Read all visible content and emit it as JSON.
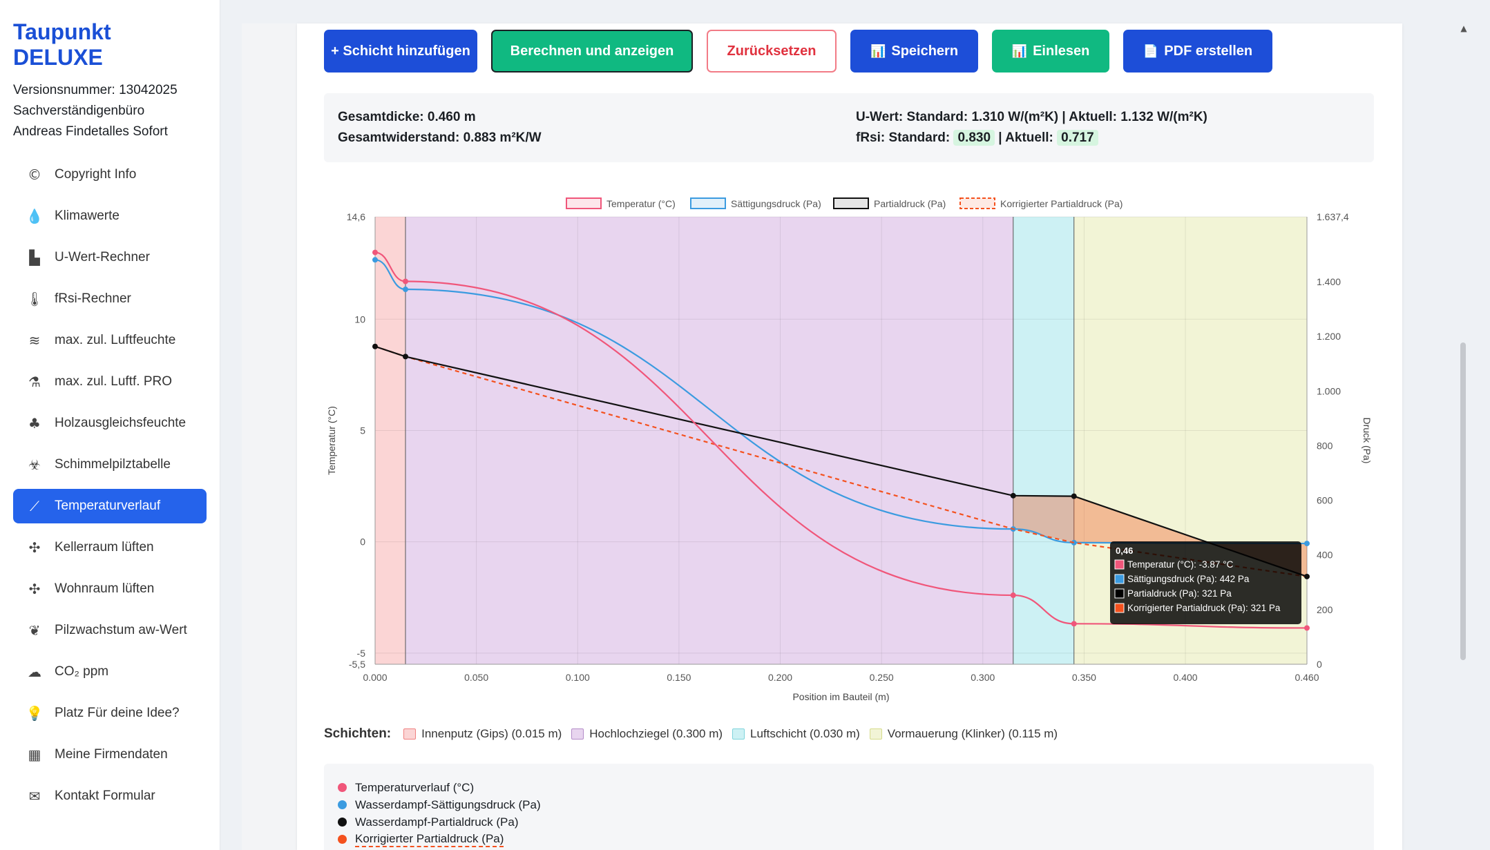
{
  "sidebar": {
    "title": "Taupunkt DELUXE",
    "version": "Versionsnummer: 13042025",
    "company_line1": "Sachverständigenbüro",
    "company_line2": "Andreas Findetalles Sofort",
    "items": [
      {
        "label": "Copyright Info",
        "icon": "©"
      },
      {
        "label": "Klimawerte",
        "icon": "💧"
      },
      {
        "label": "U-Wert-Rechner",
        "icon": "▙"
      },
      {
        "label": "fRsi-Rechner",
        "icon": "🌡"
      },
      {
        "label": "max. zul. Luftfeuchte",
        "icon": "≋"
      },
      {
        "label": "max. zul. Luftf. PRO",
        "icon": "⚗"
      },
      {
        "label": "Holzausgleichsfeuchte",
        "icon": "♣"
      },
      {
        "label": "Schimmelpilztabelle",
        "icon": "☣"
      },
      {
        "label": "Temperaturverlauf",
        "icon": "⟋"
      },
      {
        "label": "Kellerraum lüften",
        "icon": "✣"
      },
      {
        "label": "Wohnraum lüften",
        "icon": "✣"
      },
      {
        "label": "Pilzwachstum aw-Wert",
        "icon": "❦"
      },
      {
        "label": "CO₂ ppm",
        "icon": "☁"
      },
      {
        "label": "Platz Für deine Idee?",
        "icon": "💡"
      },
      {
        "label": "Meine Firmendaten",
        "icon": "▦"
      },
      {
        "label": "Kontakt Formular",
        "icon": "✉"
      }
    ],
    "active_index": 8
  },
  "toolbar": {
    "add_layer": "+ Schicht hinzufügen",
    "calculate": "Berechnen und anzeigen",
    "reset": "Zurücksetzen",
    "save": "Speichern",
    "load": "Einlesen",
    "pdf": "PDF erstellen",
    "save_icon": "📊",
    "load_icon": "📊",
    "pdf_icon": "📄"
  },
  "summary": {
    "total_thickness": "Gesamtdicke: 0.460 m",
    "total_resistance": "Gesamtwiderstand: 0.883 m²K/W",
    "u_value": "U-Wert: Standard: 1.310 W/(m²K) | Aktuell: 1.132 W/(m²K)",
    "frsi_prefix": "fRsi: Standard:",
    "frsi_standard": "0.830",
    "frsi_mid": "| Aktuell:",
    "frsi_current": "0.717"
  },
  "chart_data": {
    "type": "line",
    "legend": [
      "Temperatur (°C)",
      "Sättigungsdruck (Pa)",
      "Partialdruck (Pa)",
      "Korrigierter Partialdruck (Pa)"
    ],
    "xlabel": "Position im Bauteil (m)",
    "ylabel_left": "Temperatur (°C)",
    "ylabel_right": "Druck (Pa)",
    "xlim": [
      0,
      0.46
    ],
    "ylim_left": [
      -5.5,
      14.6
    ],
    "ylim_right": [
      0,
      1637.4
    ],
    "x_ticks": [
      "0.000",
      "0.050",
      "0.100",
      "0.150",
      "0.200",
      "0.250",
      "0.300",
      "0.350",
      "0.400",
      "0.460"
    ],
    "x_tick_values": [
      0,
      0.05,
      0.1,
      0.15,
      0.2,
      0.25,
      0.3,
      0.35,
      0.4,
      0.46
    ],
    "y_left_ticks": [
      "14,6",
      "10",
      "5",
      "0",
      "-5",
      "-5,5"
    ],
    "y_left_tick_values": [
      14.6,
      10,
      5,
      0,
      -5,
      -5.5
    ],
    "y_right_ticks": [
      "1.637,4",
      "1.400",
      "1.200",
      "1.000",
      "800",
      "600",
      "400",
      "200",
      "0"
    ],
    "y_right_tick_values": [
      1637.4,
      1400,
      1200,
      1000,
      800,
      600,
      400,
      200,
      0
    ],
    "layers": [
      {
        "name": "Innenputz (Gips)",
        "from": 0,
        "to": 0.015,
        "color": "#fbd5d5",
        "border": "#f08080"
      },
      {
        "name": "Hochlochziegel",
        "from": 0.015,
        "to": 0.315,
        "color": "#e8d5ef",
        "border": "#b48cc8"
      },
      {
        "name": "Luftschicht",
        "from": 0.315,
        "to": 0.345,
        "color": "#cdf1f4",
        "border": "#7fd4dc"
      },
      {
        "name": "Vormauerung (Klinker)",
        "from": 0.345,
        "to": 0.46,
        "color": "#f2f4d6",
        "border": "#d6dc8c"
      }
    ],
    "series": [
      {
        "name": "Temperatur (°C)",
        "axis": "left",
        "color": "#f0567a",
        "x": [
          0,
          0.015,
          0.315,
          0.345,
          0.46
        ],
        "values": [
          13.0,
          11.7,
          -2.4,
          -3.68,
          -3.87
        ]
      },
      {
        "name": "Sättigungsdruck (Pa)",
        "axis": "right",
        "color": "#3b9be0",
        "x": [
          0,
          0.015,
          0.315,
          0.345,
          0.46
        ],
        "values": [
          1480,
          1372,
          495,
          445,
          442
        ]
      },
      {
        "name": "Partialdruck (Pa)",
        "axis": "right",
        "color": "#111111",
        "x": [
          0,
          0.015,
          0.315,
          0.345,
          0.46
        ],
        "values": [
          1163,
          1126,
          617,
          615,
          321
        ]
      },
      {
        "name": "Korrigierter Partialdruck (Pa)",
        "axis": "right",
        "color": "#f4511e",
        "dashed": true,
        "x": [
          0,
          0.015,
          0.315,
          0.345,
          0.46
        ],
        "values": [
          1163,
          1126,
          495,
          445,
          321
        ]
      }
    ],
    "tooltip": {
      "title": "0,46",
      "lines": [
        "Temperatur (°C): -3.87 °C",
        "Sättigungsdruck (Pa): 442 Pa",
        "Partialdruck (Pa): 321 Pa",
        "Korrigierter Partialdruck (Pa): 321 Pa"
      ]
    }
  },
  "layers_section": {
    "label": "Schichten:",
    "items": [
      "Innenputz (Gips) (0.015 m)",
      "Hochlochziegel (0.300 m)",
      "Luftschicht (0.030 m)",
      "Vormauerung (Klinker) (0.115 m)"
    ]
  },
  "legend_panel": {
    "items": [
      {
        "label": "Temperaturverlauf (°C)",
        "color": "#f0567a"
      },
      {
        "label": "Wasserdampf-Sättigungsdruck (Pa)",
        "color": "#3b9be0"
      },
      {
        "label": "Wasserdampf-Partialdruck (Pa)",
        "color": "#111111"
      },
      {
        "label": "Korrigierter Partialdruck (Pa)",
        "color": "#f4511e"
      }
    ]
  }
}
